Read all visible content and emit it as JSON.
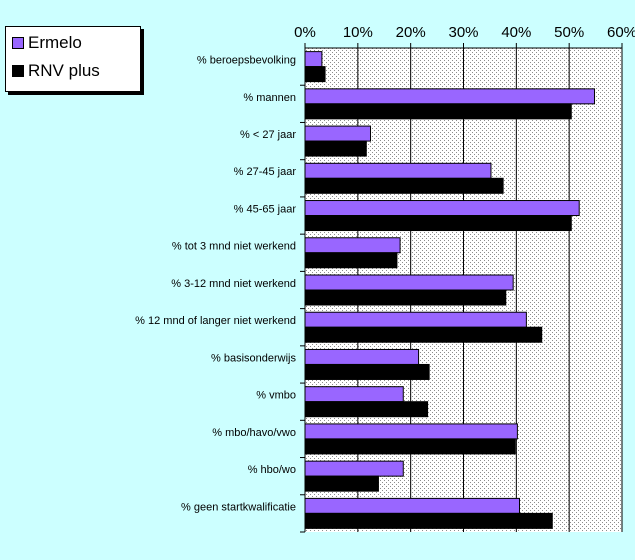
{
  "chart_data": {
    "type": "bar",
    "orientation": "horizontal",
    "categories": [
      "% beroepsbevolking",
      "% mannen",
      "% < 27 jaar",
      "% 27-45 jaar",
      "% 45-65 jaar",
      "% tot 3 mnd niet werkend",
      "% 3-12 mnd niet werkend",
      "% 12 mnd of langer niet werkend",
      "% basisonderwijs",
      "% vmbo",
      "% mbo/havo/vwo",
      "% hbo/wo",
      "% geen startkwalificatie"
    ],
    "series": [
      {
        "name": "Ermelo",
        "color": "#9966FF",
        "values": [
          3.2,
          54.8,
          12.4,
          35.2,
          51.9,
          18.0,
          39.4,
          41.9,
          21.5,
          18.6,
          40.2,
          18.6,
          40.6
        ]
      },
      {
        "name": "RNV plus",
        "color": "#000000",
        "values": [
          3.8,
          50.4,
          11.6,
          37.5,
          50.4,
          17.4,
          38.0,
          44.8,
          23.5,
          23.2,
          39.8,
          13.9,
          46.8
        ]
      }
    ],
    "xlim": [
      0,
      60
    ],
    "xticks": [
      "0%",
      "10%",
      "20%",
      "30%",
      "40%",
      "50%",
      "60%"
    ],
    "legend_position": "top-left",
    "grid": true,
    "background_color": "#CCFFFF",
    "plot_background": "#FFFFFF"
  }
}
